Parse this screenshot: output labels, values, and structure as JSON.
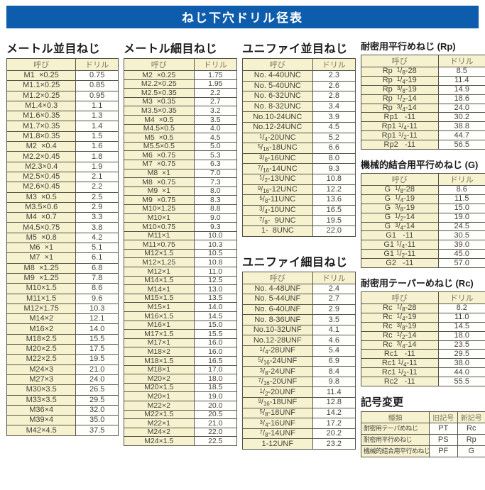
{
  "title": "ねじ下穴ドリル径表",
  "colors": {
    "accent_blue": "#0e5cac",
    "row_cream": "#f6f2d0",
    "border": "#565449"
  },
  "col_headers": {
    "name": "呼び",
    "drill": "ドリル"
  },
  "sections": [
    {
      "id": "metric_coarse",
      "title": "メートル並目ねじ",
      "rows": [
        [
          "M1  ×0.25",
          "0.75"
        ],
        [
          "M1.1×0.25",
          "0.85"
        ],
        [
          "M1.2×0.25",
          "0.95"
        ],
        [
          "M1.4×0.3",
          "1.1"
        ],
        [
          "M1.6×0.35",
          "1.3"
        ],
        [
          "M1.7×0.35",
          "1.4"
        ],
        [
          "M1.8×0.35",
          "1.5"
        ],
        [
          "M2  ×0.4",
          "1.6"
        ],
        [
          "M2.2×0.45",
          "1.8"
        ],
        [
          "M2.3×0.4",
          "1.9"
        ],
        [
          "M2.5×0.45",
          "2.1"
        ],
        [
          "M2.6×0.45",
          "2.2"
        ],
        [
          "M3  ×0.5",
          "2.5"
        ],
        [
          "M3.5×0.6",
          "2.9"
        ],
        [
          "M4  ×0.7",
          "3.3"
        ],
        [
          "M4.5×0.75",
          "3.8"
        ],
        [
          "M5  ×0.8",
          "4.2"
        ],
        [
          "M6  ×1",
          "5.1"
        ],
        [
          "M7  ×1",
          "6.1"
        ],
        [
          "M8  ×1.25",
          "6.8"
        ],
        [
          "M9  ×1.25",
          "7.8"
        ],
        [
          "M10×1.5",
          "8.6"
        ],
        [
          "M11×1.5",
          "9.6"
        ],
        [
          "M12×1.75",
          "10.3"
        ],
        [
          "M14×2",
          "12.1"
        ],
        [
          "M16×2",
          "14.0"
        ],
        [
          "M18×2.5",
          "15.5"
        ],
        [
          "M20×2.5",
          "17.5"
        ],
        [
          "M22×2.5",
          "19.5"
        ],
        [
          "M24×3",
          "21.0"
        ],
        [
          "M27×3",
          "24.0"
        ],
        [
          "M30×3.5",
          "26.5"
        ],
        [
          "M33×3.5",
          "29.5"
        ],
        [
          "M36×4",
          "32.0"
        ],
        [
          "M39×4",
          "35.0"
        ],
        [
          "M42×4.5",
          "37.5"
        ]
      ]
    },
    {
      "id": "metric_fine",
      "title": "メートル細目ねじ",
      "rows": [
        [
          "M2  ×0.25",
          "1.75"
        ],
        [
          "M2.2×0.25",
          "1.95"
        ],
        [
          "M2.5×0.35",
          "2.2"
        ],
        [
          "M3  ×0.35",
          "2.7"
        ],
        [
          "M3.5×0.35",
          "3.2"
        ],
        [
          "M4  ×0.5",
          "3.5"
        ],
        [
          "M4.5×0.5",
          "4.0"
        ],
        [
          "M5  ×0.5",
          "4.5"
        ],
        [
          "M5.5×0.5",
          "5.0"
        ],
        [
          "M6  ×0.75",
          "5.3"
        ],
        [
          "M7  ×0.75",
          "6.3"
        ],
        [
          "M8  ×1",
          "7.0"
        ],
        [
          "M8  ×0.75",
          "7.3"
        ],
        [
          "M9  ×1",
          "8.0"
        ],
        [
          "M9  ×0.75",
          "8.3"
        ],
        [
          "M10×1.25",
          "8.8"
        ],
        [
          "M10×1",
          "9.0"
        ],
        [
          "M10×0.75",
          "9.3"
        ],
        [
          "M11×1",
          "10.0"
        ],
        [
          "M11×0.75",
          "10.3"
        ],
        [
          "M12×1.5",
          "10.5"
        ],
        [
          "M12×1.25",
          "10.8"
        ],
        [
          "M12×1",
          "11.0"
        ],
        [
          "M14×1.5",
          "12.5"
        ],
        [
          "M14×1",
          "13.0"
        ],
        [
          "M15×1.5",
          "13.5"
        ],
        [
          "M15×1",
          "14.0"
        ],
        [
          "M16×1.5",
          "14.5"
        ],
        [
          "M16×1",
          "15.0"
        ],
        [
          "M17×1.5",
          "15.5"
        ],
        [
          "M17×1",
          "16.0"
        ],
        [
          "M18×2",
          "16.0"
        ],
        [
          "M18×1.5",
          "16.5"
        ],
        [
          "M18×1",
          "17.0"
        ],
        [
          "M20×2",
          "18.0"
        ],
        [
          "M20×1.5",
          "18.5"
        ],
        [
          "M20×1",
          "19.0"
        ],
        [
          "M22×2",
          "20.0"
        ],
        [
          "M22×1.5",
          "20.5"
        ],
        [
          "M22×1",
          "21.0"
        ],
        [
          "M24×2",
          "22.0"
        ],
        [
          "M24×1.5",
          "22.5"
        ]
      ]
    },
    {
      "id": "unified_coarse",
      "title": "ユニファイ並目ねじ",
      "rows": [
        [
          "No. 4-40UNC",
          "2.3"
        ],
        [
          "No. 5-40UNC",
          "2.6"
        ],
        [
          "No. 6-32UNC",
          "2.8"
        ],
        [
          "No. 8-32UNC",
          "3.4"
        ],
        [
          "No.10-24UNC",
          "3.9"
        ],
        [
          "No.12-24UNC",
          "4.5"
        ],
        [
          "1/4-20UNC",
          "5.2"
        ],
        [
          "5/16-18UNC",
          "6.6"
        ],
        [
          "3/8-16UNC",
          "8.0"
        ],
        [
          "7/16-14UNC",
          "9.3"
        ],
        [
          "1/2-13UNC",
          "10.8"
        ],
        [
          "9/16-12UNC",
          "12.2"
        ],
        [
          "5/8-11UNC",
          "13.6"
        ],
        [
          "3/4-10UNC",
          "16.5"
        ],
        [
          "7/8-  9UNC",
          "19.5"
        ],
        [
          "1-  8UNC",
          "22.0"
        ]
      ]
    },
    {
      "id": "unified_fine",
      "title": "ユニファイ細目ねじ",
      "rows": [
        [
          "No. 4-48UNF",
          "2.4"
        ],
        [
          "No. 5-44UNF",
          "2.7"
        ],
        [
          "No. 6-40UNF",
          "2.9"
        ],
        [
          "No. 8-36UNF",
          "3.5"
        ],
        [
          "No.10-32UNF",
          "4.1"
        ],
        [
          "No.12-28UNF",
          "4.6"
        ],
        [
          "1/4-28UNF",
          "5.4"
        ],
        [
          "5/16-24UNF",
          "6.9"
        ],
        [
          "3/8-24UNF",
          "8.4"
        ],
        [
          "7/16-20UNF",
          "9.8"
        ],
        [
          "1/2-20UNF",
          "11.4"
        ],
        [
          "9/16-18UNF",
          "12.8"
        ],
        [
          "5/8-18UNF",
          "14.2"
        ],
        [
          "3/4-16UNF",
          "17.2"
        ],
        [
          "7/8-14UNF",
          "20.2"
        ],
        [
          "1-12UNF",
          "23.2"
        ]
      ]
    },
    {
      "id": "rp",
      "title": "耐密用平行めねじ (Rp)",
      "rows": [
        [
          "Rp  1/8-28",
          "8.5"
        ],
        [
          "Rp  1/4-19",
          "11.4"
        ],
        [
          "Rp  3/8-19",
          "14.9"
        ],
        [
          "Rp  1/2-14",
          "18.6"
        ],
        [
          "Rp  3/4-14",
          "24.0"
        ],
        [
          "Rp1   -11",
          "30.2"
        ],
        [
          "Rp1 1/4-11",
          "38.8"
        ],
        [
          "Rp1 1/2-11",
          "44.7"
        ],
        [
          "Rp2   -11",
          "56.5"
        ]
      ]
    },
    {
      "id": "g",
      "title": "機械的結合用平行めねじ (G)",
      "rows": [
        [
          "G  1/8-28",
          "8.6"
        ],
        [
          "G  1/4-19",
          "11.5"
        ],
        [
          "G  3/8-19",
          "15.0"
        ],
        [
          "G  1/2-14",
          "19.0"
        ],
        [
          "G  3/4-14",
          "24.5"
        ],
        [
          "G1   -11",
          "30.5"
        ],
        [
          "G1 1/4-11",
          "39.0"
        ],
        [
          "G1 1/2-11",
          "45.0"
        ],
        [
          "G2   -11",
          "57.0"
        ]
      ]
    },
    {
      "id": "rc",
      "title": "耐密用テーパーめねじ (Rc)",
      "rows": [
        [
          "Rc  1/8-28",
          "8.2"
        ],
        [
          "Rc  1/4-19",
          "11.0"
        ],
        [
          "Rc  3/8-19",
          "14.5"
        ],
        [
          "Rc  1/2-14",
          "18.0"
        ],
        [
          "Rc  3/4-14",
          "23.5"
        ],
        [
          "Rc1   -11",
          "29.5"
        ],
        [
          "Rc1 1/4-11",
          "38.0"
        ],
        [
          "Rc1 1/2-11",
          "44.0"
        ],
        [
          "Rc2   -11",
          "55.5"
        ]
      ]
    }
  ],
  "symbol_change": {
    "title": "記号変更",
    "headers": [
      "種類",
      "旧記号",
      "新記号"
    ],
    "rows": [
      [
        "耐密用テーパめねじ",
        "PT",
        "Rc"
      ],
      [
        "耐密用平行めねじ",
        "PS",
        "Rp"
      ],
      [
        "機械的結合用平行めねじ",
        "PF",
        "G"
      ]
    ]
  }
}
